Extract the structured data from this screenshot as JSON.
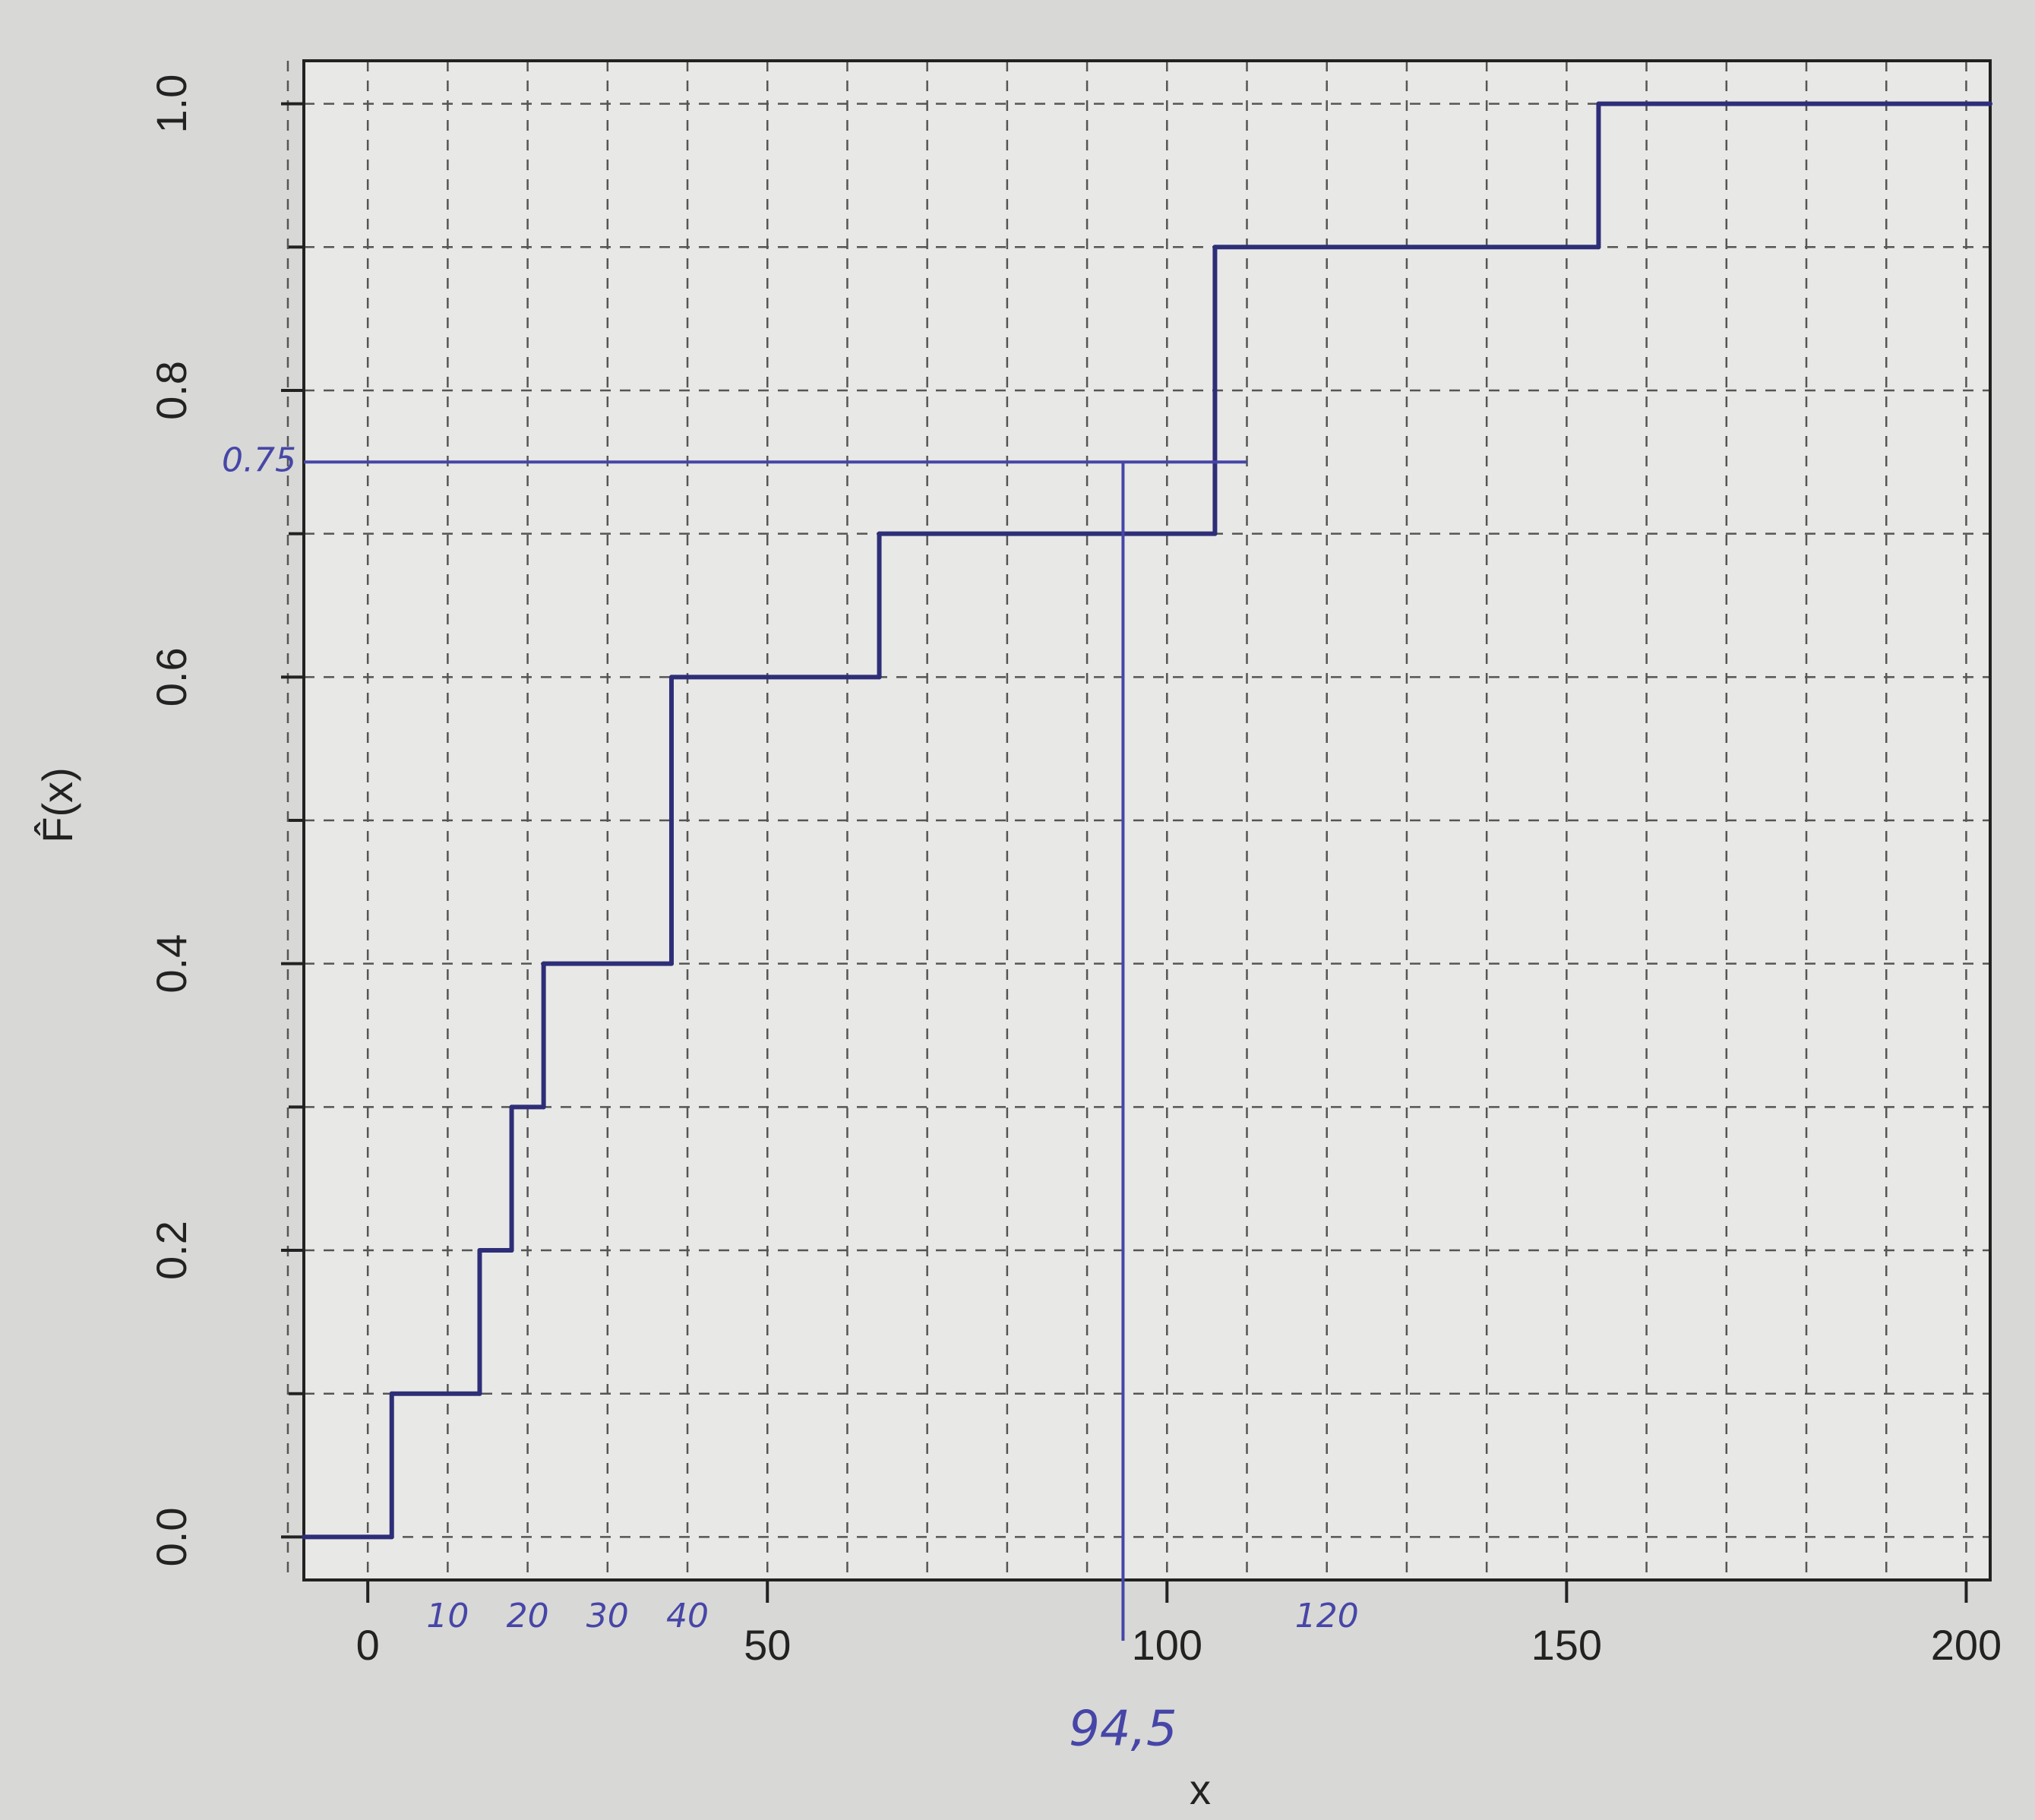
{
  "chart_data": {
    "type": "step",
    "xlabel": "x",
    "ylabel": "F̂(x)",
    "x": [
      3,
      14,
      18,
      22,
      38,
      64,
      106,
      154
    ],
    "values": [
      0.1,
      0.2,
      0.3,
      0.4,
      0.6,
      0.7,
      0.9,
      1.0
    ],
    "color": "#2e2e78",
    "xlim": [
      -8,
      203
    ],
    "ylim": [
      -0.03,
      1.03
    ],
    "xticks": [
      0,
      50,
      100,
      150,
      200
    ],
    "yticks": [
      {
        "value": 0,
        "label": "0.0"
      },
      0.2,
      0.4,
      0.6,
      0.8,
      {
        "value": 1,
        "label": "1.0"
      }
    ],
    "xminorticks": [
      -10,
      10,
      20,
      30,
      40,
      60,
      70,
      80,
      90,
      110,
      120,
      130,
      140,
      160,
      170,
      180,
      190
    ],
    "yminorticks": [
      0.1,
      0.3,
      0.5,
      0.7,
      0.9
    ],
    "grid": true,
    "annotations": [
      {
        "text": "0.75",
        "y": 0.75
      },
      {
        "text": "94,5",
        "x": 94.5
      },
      {
        "text": "10",
        "x": 10
      },
      {
        "text": "20",
        "x": 20
      },
      {
        "text": "30",
        "x": 30
      },
      {
        "text": "40",
        "x": 40
      },
      {
        "text": "120",
        "x": 120
      }
    ],
    "annotation_color": "#4646a8"
  }
}
